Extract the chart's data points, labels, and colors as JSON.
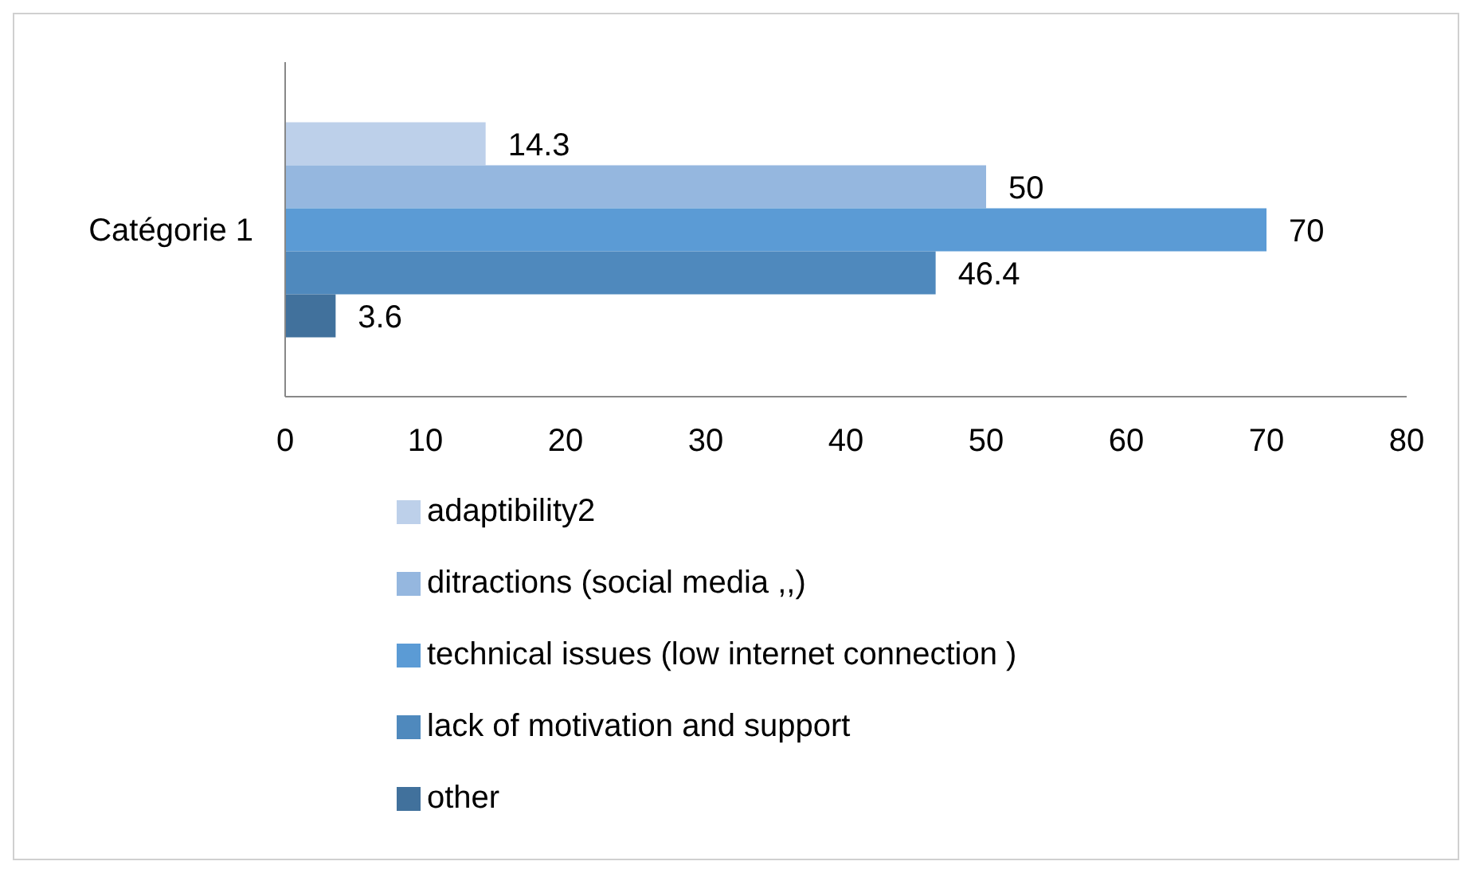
{
  "chart_data": {
    "type": "bar",
    "orientation": "horizontal",
    "categories": [
      "Catégorie 1"
    ],
    "series": [
      {
        "name": "other",
        "color": "#41719c",
        "values": [
          3.6
        ]
      },
      {
        "name": "lack of motivation and support",
        "color": "#4f89bd",
        "values": [
          46.4
        ]
      },
      {
        "name": "technical issues (low internet connection )",
        "color": "#5b9bd5",
        "values": [
          70
        ]
      },
      {
        "name": "ditractions (social media ,,)",
        "color": "#95b7df",
        "values": [
          50
        ]
      },
      {
        "name": "adaptibility2",
        "color": "#bdd0ea",
        "values": [
          14.3
        ]
      }
    ],
    "xlim": [
      0,
      80
    ],
    "xticks": [
      0,
      10,
      20,
      30,
      40,
      50,
      60,
      70,
      80
    ],
    "data_labels": true,
    "grid": false,
    "legend": "bottom"
  }
}
